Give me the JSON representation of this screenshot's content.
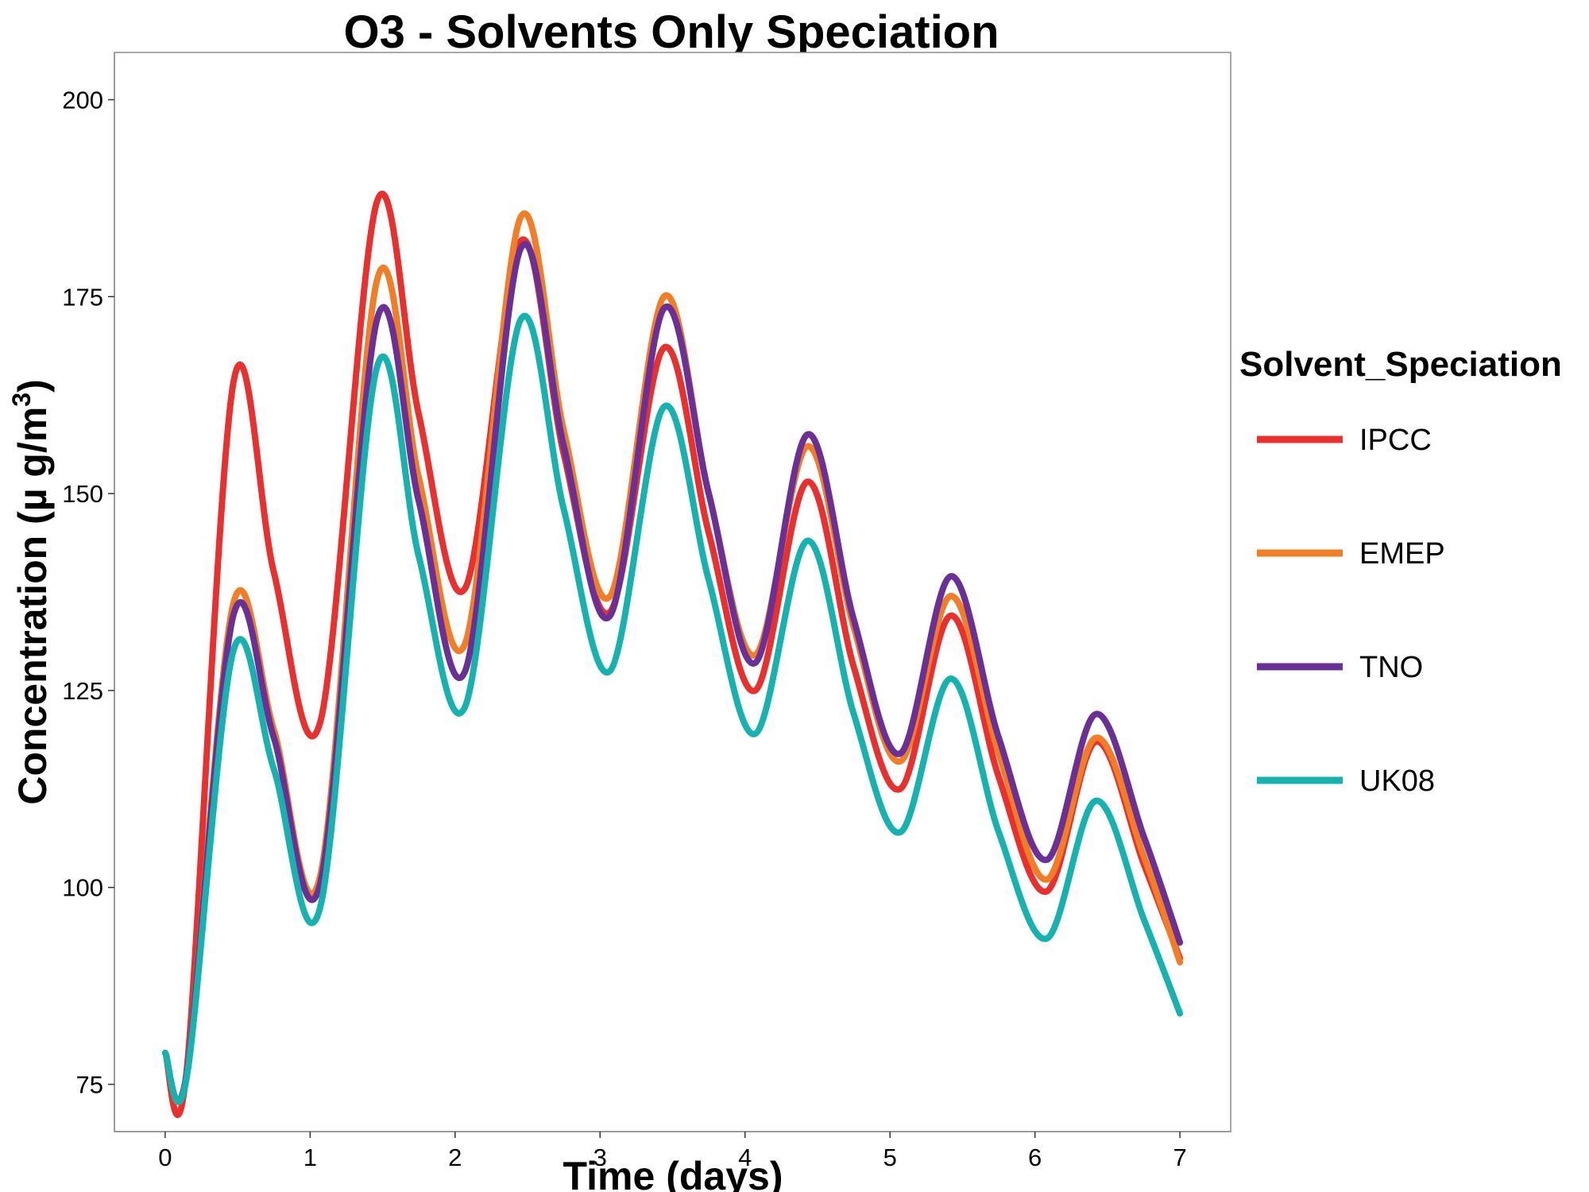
{
  "chart_data": {
    "type": "line",
    "title": "O3 - Solvents Only Speciation",
    "xlabel": "Time (days)",
    "ylabel": "Concentration (µ g/m",
    "ylabel_superscript": "3",
    "ylabel_suffix": ")",
    "xlim": [
      -0.35,
      7.35
    ],
    "ylim": [
      69,
      206
    ],
    "xticks": [
      0,
      1,
      2,
      3,
      4,
      5,
      6,
      7
    ],
    "yticks": [
      75,
      100,
      125,
      150,
      175,
      200
    ],
    "grid": false,
    "legend_title": "Solvent_Speciation",
    "legend_position": "right",
    "series": [
      {
        "name": "IPCC",
        "color": "#E8302E",
        "points": [
          [
            0,
            79
          ],
          [
            0.15,
            77
          ],
          [
            0.47,
            164
          ],
          [
            0.75,
            140
          ],
          [
            1.07,
            121
          ],
          [
            1.46,
            187
          ],
          [
            1.75,
            160
          ],
          [
            2.07,
            138
          ],
          [
            2.45,
            182
          ],
          [
            2.75,
            155
          ],
          [
            3.07,
            135
          ],
          [
            3.44,
            168.5
          ],
          [
            3.75,
            145
          ],
          [
            4.07,
            125
          ],
          [
            4.43,
            151.5
          ],
          [
            4.75,
            128
          ],
          [
            5.07,
            112.5
          ],
          [
            5.42,
            134.5
          ],
          [
            5.75,
            114
          ],
          [
            6.08,
            99.5
          ],
          [
            6.42,
            118.5
          ],
          [
            6.75,
            103
          ],
          [
            7.0,
            91
          ]
        ]
      },
      {
        "name": "EMEP",
        "color": "#F17E27",
        "points": [
          [
            0,
            79
          ],
          [
            0.15,
            76.5
          ],
          [
            0.47,
            136
          ],
          [
            0.75,
            120
          ],
          [
            1.07,
            101.5
          ],
          [
            1.46,
            177
          ],
          [
            1.75,
            152
          ],
          [
            2.07,
            131
          ],
          [
            2.45,
            185
          ],
          [
            2.75,
            158
          ],
          [
            3.07,
            137
          ],
          [
            3.44,
            175
          ],
          [
            3.75,
            150
          ],
          [
            4.07,
            129.5
          ],
          [
            4.43,
            156
          ],
          [
            4.75,
            133
          ],
          [
            5.07,
            116
          ],
          [
            5.42,
            137
          ],
          [
            5.75,
            117
          ],
          [
            6.08,
            101
          ],
          [
            6.42,
            119
          ],
          [
            6.75,
            104
          ],
          [
            7.0,
            90.5
          ]
        ]
      },
      {
        "name": "TNO",
        "color": "#6A3096",
        "points": [
          [
            0,
            79
          ],
          [
            0.15,
            76.5
          ],
          [
            0.47,
            134.5
          ],
          [
            0.75,
            119
          ],
          [
            1.07,
            100.5
          ],
          [
            1.46,
            172
          ],
          [
            1.75,
            149
          ],
          [
            2.07,
            127.5
          ],
          [
            2.45,
            181
          ],
          [
            2.75,
            156
          ],
          [
            3.07,
            134.5
          ],
          [
            3.44,
            173.5
          ],
          [
            3.75,
            150
          ],
          [
            4.07,
            128.5
          ],
          [
            4.43,
            157.5
          ],
          [
            4.75,
            134
          ],
          [
            5.07,
            117
          ],
          [
            5.42,
            139.5
          ],
          [
            5.75,
            119
          ],
          [
            6.08,
            103.5
          ],
          [
            6.42,
            122
          ],
          [
            6.75,
            106.5
          ],
          [
            7.0,
            93
          ]
        ]
      },
      {
        "name": "UK08",
        "color": "#16B2B0",
        "points": [
          [
            0,
            79
          ],
          [
            0.15,
            76
          ],
          [
            0.47,
            130
          ],
          [
            0.75,
            115
          ],
          [
            1.07,
            97.5
          ],
          [
            1.46,
            166
          ],
          [
            1.75,
            142
          ],
          [
            2.07,
            123
          ],
          [
            2.45,
            172
          ],
          [
            2.75,
            148
          ],
          [
            3.07,
            127.5
          ],
          [
            3.44,
            161
          ],
          [
            3.75,
            139
          ],
          [
            4.07,
            119.5
          ],
          [
            4.43,
            144
          ],
          [
            4.75,
            122
          ],
          [
            5.07,
            107
          ],
          [
            5.42,
            126.5
          ],
          [
            5.75,
            107
          ],
          [
            6.08,
            93.5
          ],
          [
            6.42,
            111
          ],
          [
            6.75,
            96
          ],
          [
            7.0,
            84
          ]
        ]
      }
    ]
  }
}
